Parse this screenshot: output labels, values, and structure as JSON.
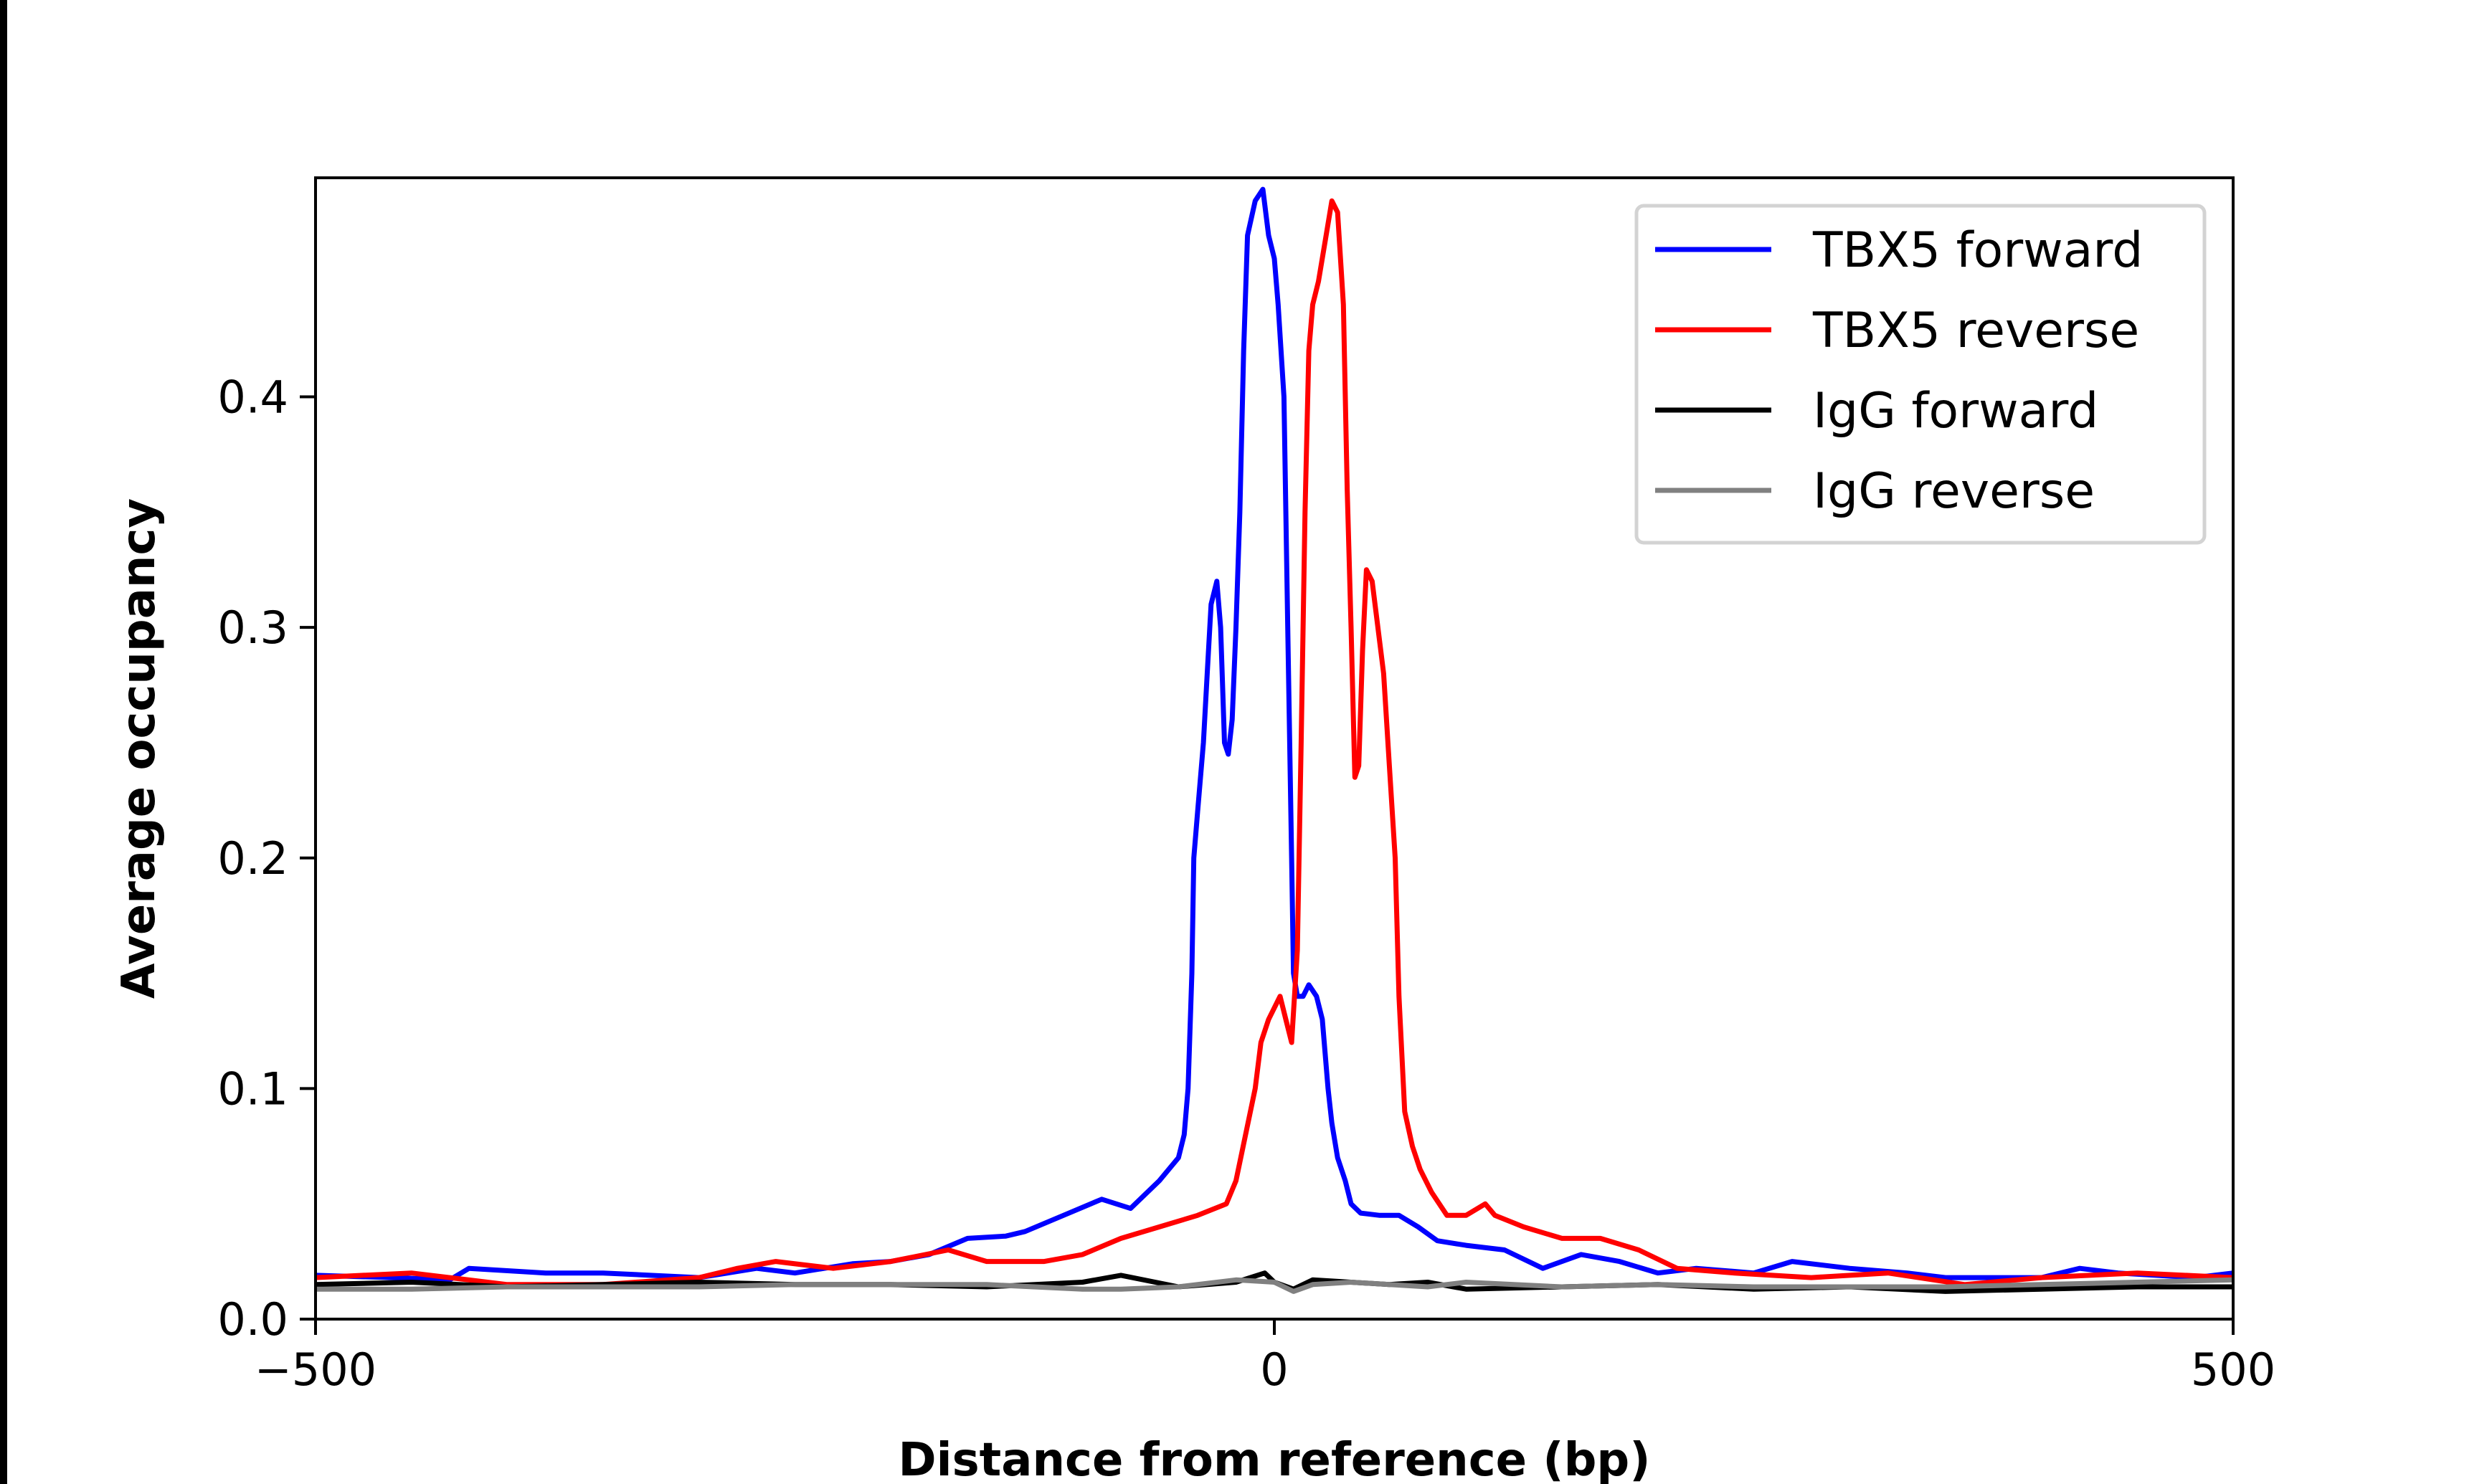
{
  "chart_data": {
    "type": "line",
    "title": "",
    "xlabel": "Distance from reference (bp)",
    "ylabel": "Average occupancy",
    "xlim": [
      -500,
      500
    ],
    "ylim": [
      0,
      0.495
    ],
    "xticks": [
      -500,
      0,
      500
    ],
    "xtick_labels": [
      "−500",
      "0",
      "500"
    ],
    "yticks": [
      0.0,
      0.1,
      0.2,
      0.3,
      0.4
    ],
    "ytick_labels": [
      "0.0",
      "0.1",
      "0.2",
      "0.3",
      "0.4"
    ],
    "grid": false,
    "legend_position": "top-right",
    "series": [
      {
        "name": "TBX5 forward",
        "color": "#0000ff",
        "x": [
          -500,
          -460,
          -430,
          -420,
          -380,
          -350,
          -300,
          -270,
          -250,
          -220,
          -200,
          -180,
          -160,
          -140,
          -130,
          -110,
          -90,
          -75,
          -60,
          -50,
          -47,
          -45,
          -43,
          -42,
          -40,
          -37,
          -35,
          -33,
          -30,
          -28,
          -26,
          -24,
          -22,
          -20,
          -18,
          -16,
          -14,
          -10,
          -6,
          -3,
          0,
          2,
          5,
          7,
          9,
          10,
          12,
          15,
          18,
          22,
          25,
          28,
          30,
          33,
          37,
          40,
          45,
          55,
          65,
          75,
          85,
          100,
          120,
          140,
          160,
          180,
          200,
          220,
          250,
          270,
          300,
          330,
          350,
          400,
          420,
          440,
          480,
          500
        ],
        "y": [
          0.019,
          0.018,
          0.017,
          0.022,
          0.02,
          0.02,
          0.018,
          0.022,
          0.02,
          0.024,
          0.025,
          0.028,
          0.035,
          0.036,
          0.038,
          0.045,
          0.052,
          0.048,
          0.06,
          0.07,
          0.08,
          0.1,
          0.15,
          0.2,
          0.22,
          0.25,
          0.28,
          0.31,
          0.32,
          0.3,
          0.25,
          0.245,
          0.26,
          0.3,
          0.35,
          0.42,
          0.47,
          0.485,
          0.49,
          0.47,
          0.46,
          0.44,
          0.4,
          0.3,
          0.2,
          0.15,
          0.14,
          0.14,
          0.145,
          0.14,
          0.13,
          0.1,
          0.085,
          0.07,
          0.06,
          0.05,
          0.046,
          0.045,
          0.045,
          0.04,
          0.034,
          0.032,
          0.03,
          0.022,
          0.028,
          0.025,
          0.02,
          0.022,
          0.02,
          0.025,
          0.022,
          0.02,
          0.018,
          0.018,
          0.022,
          0.02,
          0.018,
          0.02
        ]
      },
      {
        "name": "TBX5 reverse",
        "color": "#ff0000",
        "x": [
          -500,
          -450,
          -400,
          -350,
          -300,
          -280,
          -260,
          -230,
          -200,
          -170,
          -150,
          -120,
          -100,
          -80,
          -60,
          -40,
          -25,
          -20,
          -15,
          -10,
          -7,
          -3,
          0,
          3,
          6,
          9,
          12,
          14,
          16,
          18,
          20,
          23,
          27,
          30,
          33,
          36,
          38,
          40,
          42,
          44,
          46,
          48,
          51,
          54,
          57,
          60,
          63,
          65,
          68,
          72,
          76,
          82,
          90,
          100,
          110,
          115,
          130,
          150,
          170,
          190,
          210,
          240,
          280,
          320,
          360,
          400,
          450,
          500
        ],
        "y": [
          0.018,
          0.02,
          0.015,
          0.015,
          0.018,
          0.022,
          0.025,
          0.022,
          0.025,
          0.03,
          0.025,
          0.025,
          0.028,
          0.035,
          0.04,
          0.045,
          0.05,
          0.06,
          0.08,
          0.1,
          0.12,
          0.13,
          0.135,
          0.14,
          0.13,
          0.12,
          0.16,
          0.25,
          0.35,
          0.42,
          0.44,
          0.45,
          0.47,
          0.485,
          0.48,
          0.44,
          0.36,
          0.3,
          0.235,
          0.24,
          0.29,
          0.325,
          0.32,
          0.3,
          0.28,
          0.24,
          0.2,
          0.14,
          0.09,
          0.075,
          0.065,
          0.055,
          0.045,
          0.045,
          0.05,
          0.045,
          0.04,
          0.035,
          0.035,
          0.03,
          0.022,
          0.02,
          0.018,
          0.02,
          0.015,
          0.018,
          0.02,
          0.018
        ]
      },
      {
        "name": "IgG forward",
        "color": "#000000",
        "x": [
          -500,
          -450,
          -400,
          -350,
          -300,
          -250,
          -200,
          -150,
          -100,
          -80,
          -50,
          -20,
          -5,
          0,
          10,
          20,
          40,
          60,
          80,
          100,
          150,
          200,
          250,
          300,
          350,
          400,
          450,
          500
        ],
        "y": [
          0.015,
          0.016,
          0.014,
          0.015,
          0.016,
          0.015,
          0.015,
          0.014,
          0.016,
          0.019,
          0.014,
          0.016,
          0.02,
          0.016,
          0.013,
          0.017,
          0.016,
          0.015,
          0.016,
          0.013,
          0.014,
          0.015,
          0.013,
          0.014,
          0.012,
          0.013,
          0.014,
          0.014
        ]
      },
      {
        "name": "IgG reverse",
        "color": "#808080",
        "x": [
          -500,
          -450,
          -400,
          -350,
          -300,
          -250,
          -200,
          -150,
          -100,
          -80,
          -50,
          -20,
          0,
          10,
          20,
          40,
          60,
          80,
          100,
          150,
          200,
          250,
          300,
          350,
          400,
          450,
          500
        ],
        "y": [
          0.013,
          0.013,
          0.014,
          0.014,
          0.014,
          0.015,
          0.015,
          0.015,
          0.013,
          0.013,
          0.014,
          0.017,
          0.016,
          0.012,
          0.015,
          0.016,
          0.015,
          0.014,
          0.016,
          0.014,
          0.015,
          0.014,
          0.014,
          0.014,
          0.015,
          0.016,
          0.017
        ]
      }
    ]
  }
}
